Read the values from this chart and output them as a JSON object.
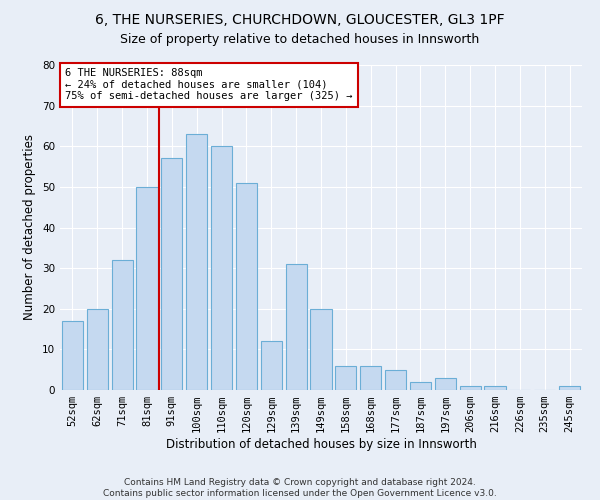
{
  "title1": "6, THE NURSERIES, CHURCHDOWN, GLOUCESTER, GL3 1PF",
  "title2": "Size of property relative to detached houses in Innsworth",
  "xlabel": "Distribution of detached houses by size in Innsworth",
  "ylabel": "Number of detached properties",
  "categories": [
    "52sqm",
    "62sqm",
    "71sqm",
    "81sqm",
    "91sqm",
    "100sqm",
    "110sqm",
    "120sqm",
    "129sqm",
    "139sqm",
    "149sqm",
    "158sqm",
    "168sqm",
    "177sqm",
    "187sqm",
    "197sqm",
    "206sqm",
    "216sqm",
    "226sqm",
    "235sqm",
    "245sqm"
  ],
  "values": [
    17,
    20,
    32,
    50,
    57,
    63,
    60,
    51,
    12,
    31,
    20,
    6,
    6,
    5,
    2,
    3,
    1,
    1,
    0,
    0,
    1
  ],
  "bar_color": "#c5d9f0",
  "bar_edge_color": "#6baed6",
  "marker_bin_index": 4,
  "marker_color": "#cc0000",
  "annotation_text": "6 THE NURSERIES: 88sqm\n← 24% of detached houses are smaller (104)\n75% of semi-detached houses are larger (325) →",
  "annotation_box_color": "white",
  "annotation_box_edge": "#cc0000",
  "ylim": [
    0,
    80
  ],
  "yticks": [
    0,
    10,
    20,
    30,
    40,
    50,
    60,
    70,
    80
  ],
  "footnote": "Contains HM Land Registry data © Crown copyright and database right 2024.\nContains public sector information licensed under the Open Government Licence v3.0.",
  "background_color": "#e8eef7",
  "grid_color": "white",
  "title1_fontsize": 10,
  "title2_fontsize": 9,
  "xlabel_fontsize": 8.5,
  "ylabel_fontsize": 8.5,
  "tick_fontsize": 7.5,
  "annotation_fontsize": 7.5,
  "footnote_fontsize": 6.5
}
